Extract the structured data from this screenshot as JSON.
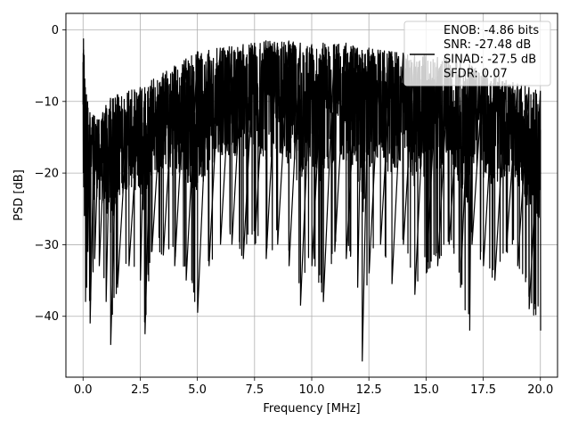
{
  "chart_data": {
    "type": "line",
    "title": "",
    "xlabel": "Frequency [MHz]",
    "ylabel": "PSD [dB]",
    "xlim": [
      -0.75,
      20.75
    ],
    "ylim": [
      -48.5,
      2.3
    ],
    "grid": true,
    "legend_position": "top-right",
    "xticks": [
      0.0,
      2.5,
      5.0,
      7.5,
      10.0,
      12.5,
      15.0,
      17.5,
      20.0
    ],
    "xtick_labels": [
      "0.0",
      "2.5",
      "5.0",
      "7.5",
      "10.0",
      "12.5",
      "15.0",
      "17.5",
      "20.0"
    ],
    "yticks": [
      0,
      -10,
      -20,
      -30,
      -40
    ],
    "ytick_labels": [
      "0",
      "−10",
      "−20",
      "−30",
      "−40"
    ],
    "series": [
      {
        "name": "",
        "color": "#000000",
        "x": [
          0.0,
          0.02,
          0.05,
          0.1,
          0.15,
          0.2,
          0.3,
          0.5,
          0.7,
          1.0,
          1.2,
          1.5,
          2.0,
          2.5,
          2.7,
          3.0,
          3.5,
          4.0,
          4.5,
          5.0,
          5.5,
          6.0,
          6.5,
          7.0,
          7.5,
          8.0,
          8.5,
          9.0,
          9.5,
          10.0,
          10.5,
          11.0,
          11.5,
          12.0,
          12.2,
          12.5,
          13.0,
          13.5,
          14.0,
          14.5,
          15.0,
          15.5,
          16.0,
          16.5,
          16.9,
          17.0,
          17.5,
          18.0,
          18.5,
          19.0,
          19.5,
          20.0
        ],
        "upper": [
          -4.5,
          -1.2,
          -3.5,
          -8.0,
          -9.0,
          -10.0,
          -11.5,
          -12.0,
          -12.5,
          -10.5,
          -9.5,
          -9.0,
          -8.5,
          -8.0,
          -8.0,
          -7.0,
          -6.0,
          -5.0,
          -4.0,
          -3.0,
          -2.8,
          -2.5,
          -2.3,
          -2.0,
          -1.8,
          -1.5,
          -1.8,
          -1.5,
          -1.8,
          -2.0,
          -1.8,
          -2.0,
          -1.8,
          -2.5,
          -2.8,
          -2.5,
          -2.8,
          -3.0,
          -3.2,
          -3.5,
          -3.5,
          -3.8,
          -4.0,
          -4.5,
          -4.8,
          -5.0,
          -5.5,
          -6.0,
          -7.0,
          -7.5,
          -8.0,
          -8.5
        ],
        "lower": [
          -20.0,
          -22.0,
          -26.0,
          -38.0,
          -36.0,
          -31.0,
          -41.0,
          -32.0,
          -33.0,
          -38.0,
          -44.0,
          -36.0,
          -33.0,
          -35.0,
          -42.5,
          -31.0,
          -31.5,
          -33.0,
          -35.0,
          -39.5,
          -33.0,
          -30.0,
          -30.0,
          -32.0,
          -30.0,
          -32.0,
          -30.0,
          -33.0,
          -38.5,
          -33.0,
          -38.0,
          -31.0,
          -32.0,
          -36.0,
          -46.3,
          -34.0,
          -30.0,
          -35.5,
          -30.0,
          -37.0,
          -34.0,
          -33.0,
          -30.0,
          -36.0,
          -42.0,
          -30.0,
          -33.0,
          -35.0,
          -31.0,
          -33.0,
          -39.0,
          -42.0
        ]
      }
    ],
    "legend": {
      "lines": [
        "ENOB: -4.86 bits",
        "SNR: -27.48 dB",
        "SINAD: -27.5 dB",
        "SFDR: 0.07"
      ]
    }
  }
}
